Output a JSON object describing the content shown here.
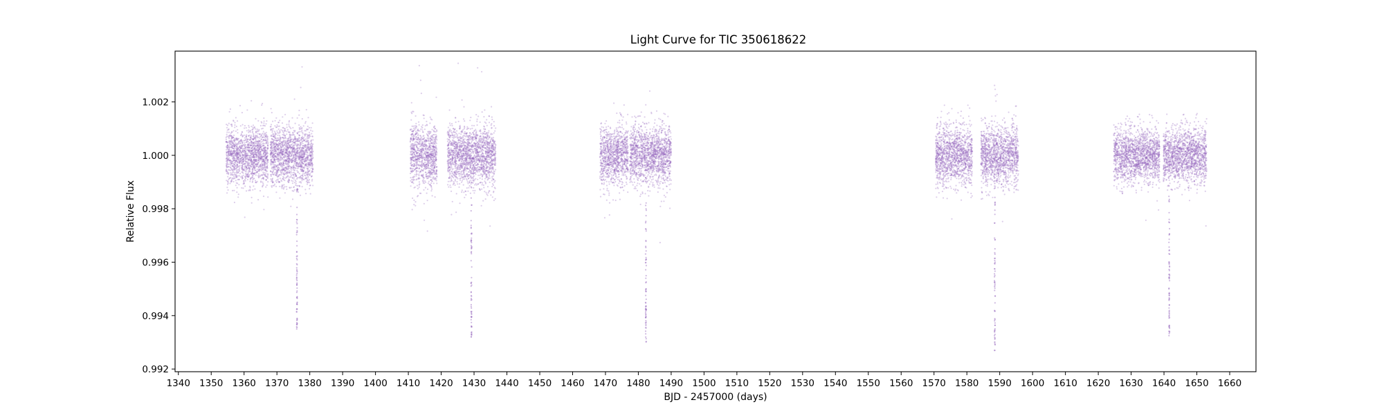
{
  "chart_data": {
    "type": "scatter",
    "title": "Light Curve for TIC 350618622",
    "xlabel": "BJD - 2457000 (days)",
    "ylabel": "Relative Flux",
    "xlim": [
      1339,
      1668
    ],
    "ylim": [
      0.9919,
      1.0039
    ],
    "xticks": [
      1340,
      1350,
      1360,
      1370,
      1380,
      1390,
      1400,
      1410,
      1420,
      1430,
      1440,
      1450,
      1460,
      1470,
      1480,
      1490,
      1500,
      1510,
      1520,
      1530,
      1540,
      1550,
      1560,
      1570,
      1580,
      1590,
      1600,
      1610,
      1620,
      1630,
      1640,
      1650,
      1660
    ],
    "yticks": [
      0.992,
      0.994,
      0.996,
      0.998,
      1.0,
      1.002
    ],
    "ytick_labels": [
      "0.992",
      "0.994",
      "0.996",
      "0.998",
      "1.000",
      "1.002"
    ],
    "grid": false,
    "marker_color": "#9467bd",
    "series": [
      {
        "segments": [
          {
            "x": [
              1354.5,
              1367.3
            ],
            "center": 1.0,
            "sigma": 0.00055,
            "density": 1
          },
          {
            "x": [
              1368.0,
              1381.0
            ],
            "center": 1.0,
            "sigma": 0.00055,
            "density": 1
          },
          {
            "x": [
              1410.6,
              1418.7
            ],
            "center": 1.0,
            "sigma": 0.0006,
            "density": 1
          },
          {
            "x": [
              1421.9,
              1436.6
            ],
            "center": 1.0,
            "sigma": 0.0006,
            "density": 1
          },
          {
            "x": [
              1468.3,
              1476.9
            ],
            "center": 1.0,
            "sigma": 0.00055,
            "density": 1
          },
          {
            "x": [
              1477.4,
              1490.0
            ],
            "center": 1.0,
            "sigma": 0.00055,
            "density": 1
          },
          {
            "x": [
              1570.5,
              1581.7
            ],
            "center": 1.0,
            "sigma": 0.00055,
            "density": 1
          },
          {
            "x": [
              1584.3,
              1595.7
            ],
            "center": 1.0,
            "sigma": 0.00055,
            "density": 1
          },
          {
            "x": [
              1624.7,
              1638.7
            ],
            "center": 1.0,
            "sigma": 0.0005,
            "density": 1
          },
          {
            "x": [
              1639.8,
              1653.0
            ],
            "center": 1.0,
            "sigma": 0.0005,
            "density": 1
          }
        ],
        "transits": [
          {
            "x": 1376.1,
            "min": 0.9935
          },
          {
            "x": 1429.2,
            "min": 0.9932
          },
          {
            "x": 1482.3,
            "min": 0.993
          },
          {
            "x": 1588.5,
            "min": 0.9927
          },
          {
            "x": 1641.6,
            "min": 0.9932
          }
        ]
      }
    ]
  }
}
